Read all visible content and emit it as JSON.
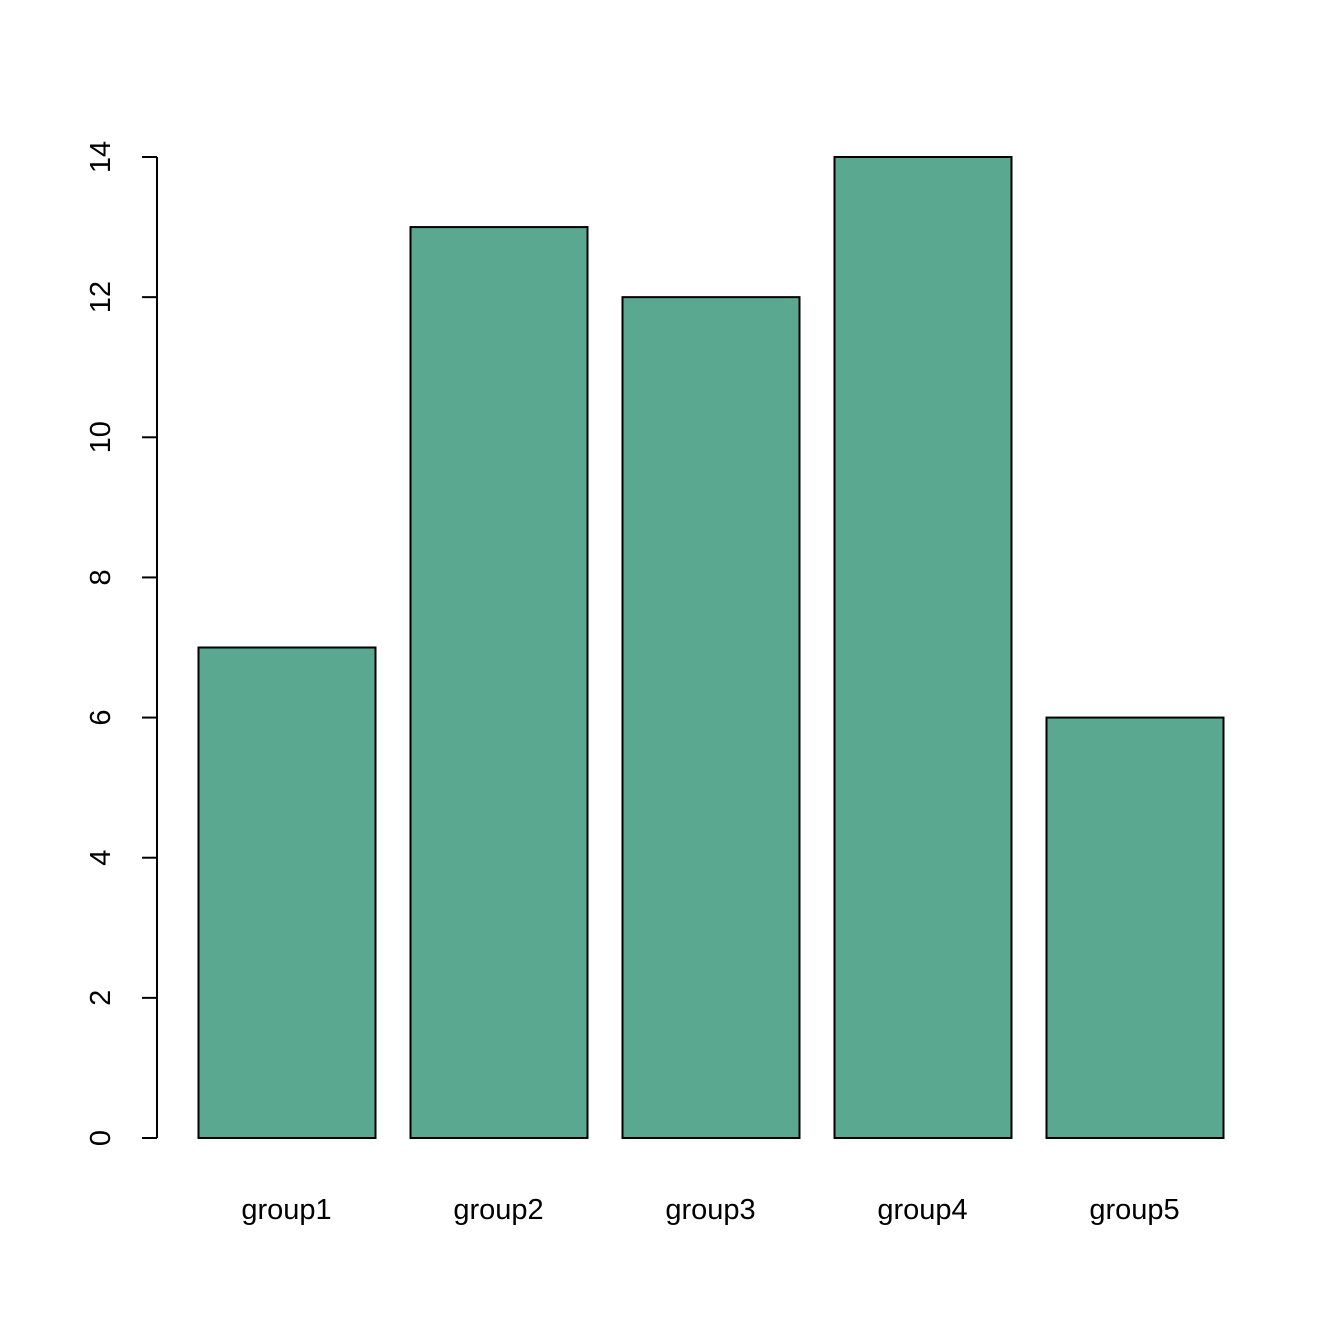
{
  "chart_data": {
    "type": "bar",
    "title": "",
    "xlabel": "",
    "ylabel": "",
    "categories": [
      "group1",
      "group2",
      "group3",
      "group4",
      "group5"
    ],
    "values": [
      7,
      13,
      12,
      14,
      6
    ],
    "ylim": [
      0,
      14
    ],
    "yticks": [
      0,
      2,
      4,
      6,
      8,
      10,
      12,
      14
    ],
    "grid": false,
    "legend": "none",
    "bar_color": "#5BA891",
    "bar_border_color": "#000000",
    "background": "#ffffff"
  }
}
